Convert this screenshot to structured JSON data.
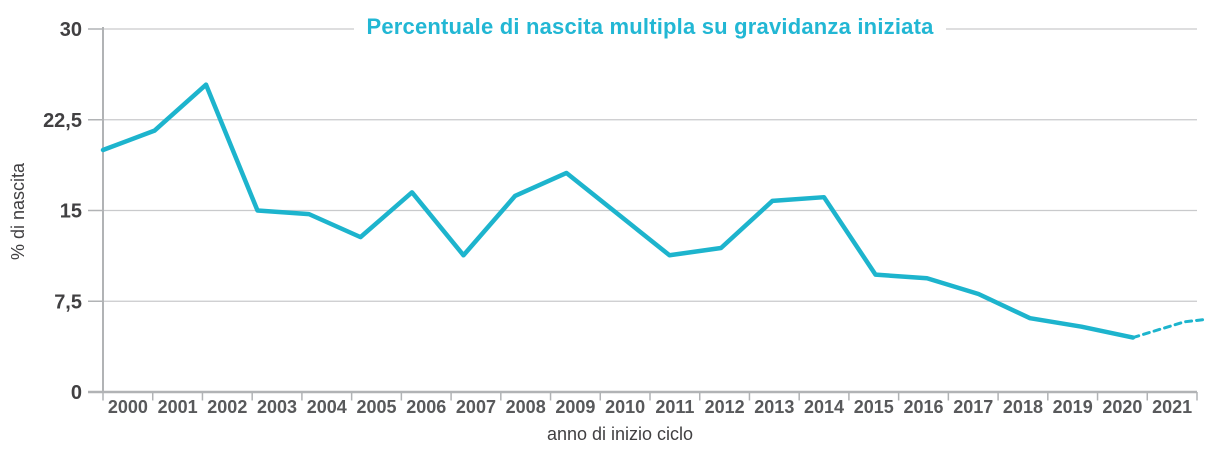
{
  "chart_data": {
    "type": "line",
    "title": "Percentuale di nascita multipla su gravidanza iniziata",
    "xlabel": "anno di inizio ciclo",
    "ylabel": "% di nascita",
    "categories": [
      "2000",
      "2001",
      "2002",
      "2003",
      "2004",
      "2005",
      "2006",
      "2007",
      "2008",
      "2009",
      "2010",
      "2011",
      "2012",
      "2013",
      "2014",
      "2015",
      "2016",
      "2017",
      "2018",
      "2019",
      "2020",
      "2021"
    ],
    "series": [
      {
        "name": "% di nascita multipla su gravidanza iniziata",
        "values": [
          20.0,
          21.6,
          25.4,
          15.0,
          14.7,
          12.8,
          16.5,
          11.3,
          16.2,
          18.1,
          14.7,
          11.3,
          11.9,
          15.8,
          16.1,
          9.7,
          9.4,
          8.1,
          6.1,
          5.4,
          4.5,
          5.8
        ]
      }
    ],
    "ylim": [
      0,
      30
    ],
    "yticks": [
      {
        "value": 0,
        "label": "0"
      },
      {
        "value": 7.5,
        "label": "7,5"
      },
      {
        "value": 15,
        "label": "15"
      },
      {
        "value": 22.5,
        "label": "22,5"
      },
      {
        "value": 30,
        "label": "30"
      }
    ],
    "grid": "horizontal",
    "legend": "none",
    "dashed_last_segment": true,
    "colors": {
      "line": "#1db4cd",
      "title": "#22b7d4",
      "axis": "#b1b3b5",
      "grid": "#c9cacc",
      "tick_label": "#414042",
      "year_label": "#58595b",
      "background": "#ffffff"
    }
  }
}
